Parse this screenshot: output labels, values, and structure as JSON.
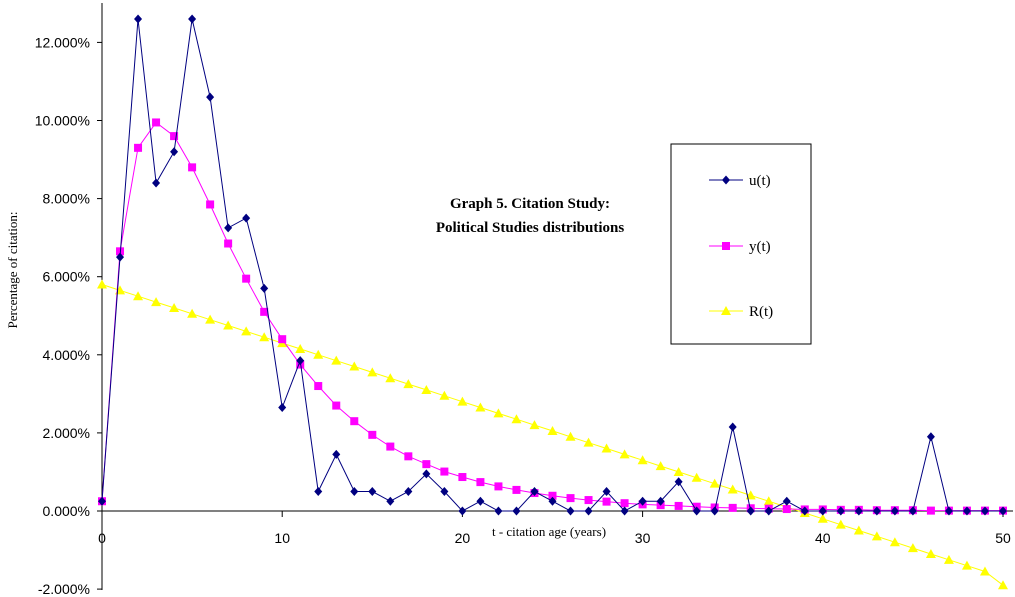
{
  "chart_data": {
    "type": "line",
    "title_line1": "Graph 5.  Citation Study:",
    "title_line2": "Political Studies distributions",
    "xlabel": "t - citation age (years)",
    "ylabel": "Percentage of citation:",
    "xlim": [
      0,
      50
    ],
    "ylim": [
      -0.02,
      0.125
    ],
    "x_ticks": [
      "0",
      "10",
      "20",
      "30",
      "40",
      "50"
    ],
    "y_ticks": [
      "-2.000%",
      "0.000%",
      "2.000%",
      "4.000%",
      "6.000%",
      "8.000%",
      "10.000%",
      "12.000%"
    ],
    "grid": false,
    "legend_position": "right",
    "series": [
      {
        "name": "u(t)",
        "color": "#000080",
        "marker": "diamond",
        "x": [
          0,
          1,
          2,
          3,
          4,
          5,
          6,
          7,
          8,
          9,
          10,
          11,
          12,
          13,
          14,
          15,
          16,
          17,
          18,
          19,
          20,
          21,
          22,
          23,
          24,
          25,
          26,
          27,
          28,
          29,
          30,
          31,
          32,
          33,
          34,
          35,
          36,
          37,
          38,
          39,
          40,
          41,
          42,
          43,
          44,
          45,
          46,
          47,
          48,
          49,
          50
        ],
        "values": [
          0.0025,
          0.065,
          0.126,
          0.084,
          0.092,
          0.126,
          0.106,
          0.0725,
          0.075,
          0.057,
          0.0265,
          0.0385,
          0.005,
          0.0145,
          0.005,
          0.005,
          0.0025,
          0.005,
          0.0095,
          0.005,
          0.0,
          0.0025,
          0.0,
          0.0,
          0.005,
          0.0025,
          0.0,
          0.0,
          0.005,
          0.0,
          0.0025,
          0.0025,
          0.0075,
          0.0,
          0.0,
          0.0215,
          0.0,
          0.0,
          0.0025,
          0.0,
          0.0,
          0.0,
          0.0,
          0.0,
          0.0,
          0.0,
          0.019,
          0.0,
          0.0,
          0.0,
          0.0
        ]
      },
      {
        "name": "y(t)",
        "color": "#ff00ff",
        "marker": "square",
        "x": [
          0,
          1,
          2,
          3,
          4,
          5,
          6,
          7,
          8,
          9,
          10,
          11,
          12,
          13,
          14,
          15,
          16,
          17,
          18,
          19,
          20,
          21,
          22,
          23,
          24,
          25,
          26,
          27,
          28,
          29,
          30,
          31,
          32,
          33,
          34,
          35,
          36,
          37,
          38,
          39,
          40,
          41,
          42,
          43,
          44,
          45,
          46,
          47,
          48,
          49,
          50
        ],
        "values": [
          0.0025,
          0.0665,
          0.093,
          0.0995,
          0.096,
          0.088,
          0.0785,
          0.0685,
          0.0595,
          0.051,
          0.044,
          0.0375,
          0.032,
          0.027,
          0.023,
          0.0195,
          0.0165,
          0.014,
          0.012,
          0.0101,
          0.0087,
          0.0074,
          0.0063,
          0.0054,
          0.0046,
          0.0039,
          0.0033,
          0.0028,
          0.0024,
          0.002,
          0.0017,
          0.0015,
          0.0013,
          0.0011,
          0.0009,
          0.0008,
          0.0007,
          0.0006,
          0.0005,
          0.0004,
          0.0004,
          0.0003,
          0.0003,
          0.0002,
          0.0002,
          0.0002,
          0.0001,
          0.0001,
          0.0001,
          0.0001,
          0.0001
        ]
      },
      {
        "name": "R(t)",
        "color": "#ffff00",
        "marker": "triangle",
        "x": [
          0,
          1,
          2,
          3,
          4,
          5,
          6,
          7,
          8,
          9,
          10,
          11,
          12,
          13,
          14,
          15,
          16,
          17,
          18,
          19,
          20,
          21,
          22,
          23,
          24,
          25,
          26,
          27,
          28,
          29,
          30,
          31,
          32,
          33,
          34,
          35,
          36,
          37,
          38,
          39,
          40,
          41,
          42,
          43,
          44,
          45,
          46,
          47,
          48,
          49,
          50
        ],
        "values": [
          0.058,
          0.0565,
          0.055,
          0.0535,
          0.052,
          0.0505,
          0.049,
          0.0475,
          0.046,
          0.0445,
          0.043,
          0.0415,
          0.04,
          0.0385,
          0.037,
          0.0355,
          0.034,
          0.0325,
          0.031,
          0.0295,
          0.028,
          0.0265,
          0.025,
          0.0235,
          0.022,
          0.0205,
          0.019,
          0.0175,
          0.016,
          0.0145,
          0.013,
          0.0115,
          0.01,
          0.0085,
          0.007,
          0.0055,
          0.004,
          0.0025,
          0.001,
          -0.0005,
          -0.002,
          -0.0035,
          -0.005,
          -0.0065,
          -0.008,
          -0.0095,
          -0.011,
          -0.0125,
          -0.014,
          -0.0155,
          -0.019
        ]
      }
    ]
  }
}
